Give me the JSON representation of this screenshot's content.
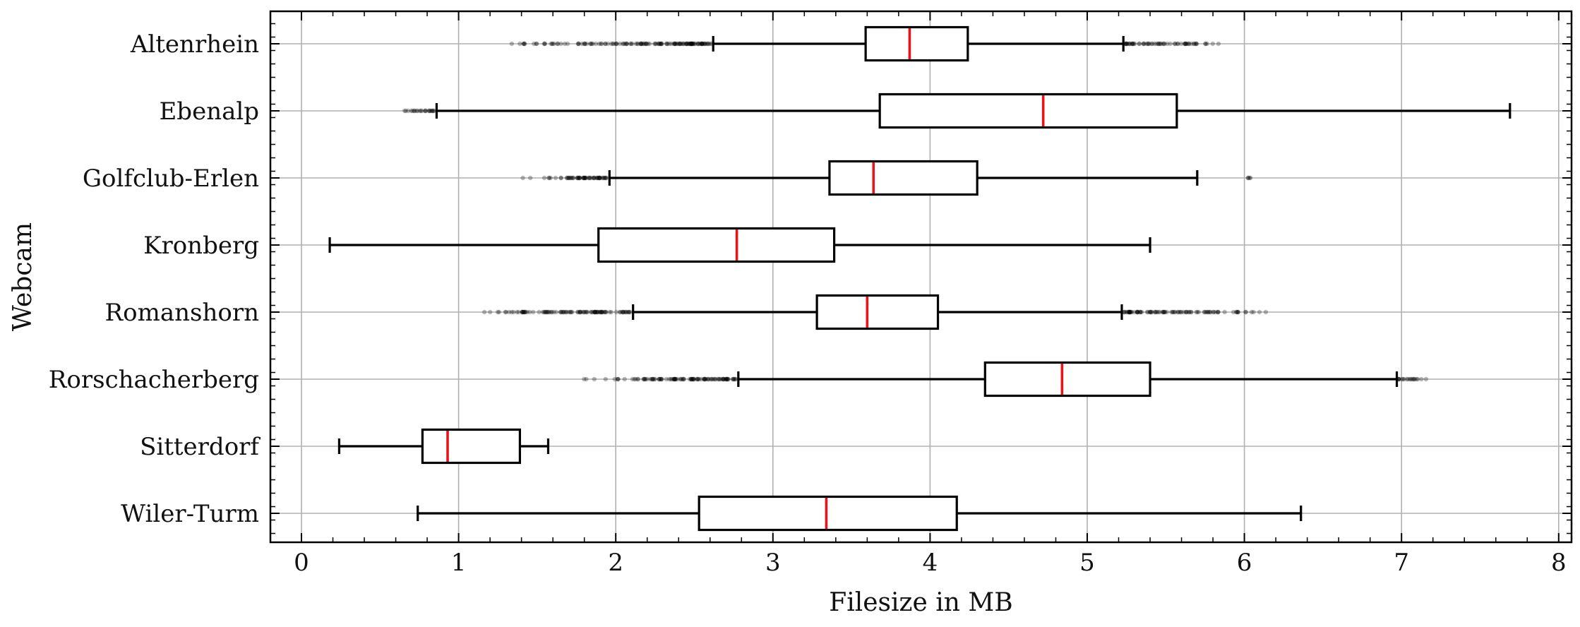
{
  "chart_data": {
    "type": "boxplot",
    "orientation": "horizontal",
    "xlabel": "Filesize in MB",
    "ylabel": "Webcam",
    "xlim": [
      -0.2,
      8.1
    ],
    "xticks": [
      "0",
      "1",
      "2",
      "3",
      "4",
      "5",
      "6",
      "7",
      "8"
    ],
    "grid": true,
    "median_color": "#e8141a",
    "box_color": "#000000",
    "categories": [
      "Altenrhein",
      "Ebenalp",
      "Golfclub-Erlen",
      "Kronberg",
      "Romanshorn",
      "Rorschacherberg",
      "Sitterdorf",
      "Wiler-Turm"
    ],
    "boxes": [
      {
        "label": "Altenrhein",
        "whisker_low": 2.62,
        "q1": 3.59,
        "median": 3.87,
        "q3": 4.24,
        "whisker_high": 5.23,
        "outliers_low": [
          1.22,
          2.61
        ],
        "outliers_high": [
          5.24,
          5.85
        ]
      },
      {
        "label": "Ebenalp",
        "whisker_low": 0.86,
        "q1": 3.68,
        "median": 4.72,
        "q3": 5.57,
        "whisker_high": 7.69,
        "outliers_low": [
          0.62,
          0.85
        ],
        "outliers_high": []
      },
      {
        "label": "Golfclub-Erlen",
        "whisker_low": 1.96,
        "q1": 3.36,
        "median": 3.64,
        "q3": 4.3,
        "whisker_high": 5.7,
        "outliers_low": [
          1.36,
          1.95
        ],
        "outliers_high": [
          6.02,
          6.06
        ]
      },
      {
        "label": "Kronberg",
        "whisker_low": 0.18,
        "q1": 1.89,
        "median": 2.77,
        "q3": 3.39,
        "whisker_high": 5.4,
        "outliers_low": [],
        "outliers_high": []
      },
      {
        "label": "Romanshorn",
        "whisker_low": 2.11,
        "q1": 3.28,
        "median": 3.6,
        "q3": 4.05,
        "whisker_high": 5.22,
        "outliers_low": [
          1.09,
          2.1
        ],
        "outliers_high": [
          5.23,
          6.15
        ]
      },
      {
        "label": "Rorschacherberg",
        "whisker_low": 2.78,
        "q1": 4.35,
        "median": 4.84,
        "q3": 5.4,
        "whisker_high": 6.97,
        "outliers_low": [
          1.71,
          2.77
        ],
        "outliers_high": [
          6.98,
          7.17
        ]
      },
      {
        "label": "Sitterdorf",
        "whisker_low": 0.24,
        "q1": 0.77,
        "median": 0.93,
        "q3": 1.39,
        "whisker_high": 1.57,
        "outliers_low": [],
        "outliers_high": []
      },
      {
        "label": "Wiler-Turm",
        "whisker_low": 0.74,
        "q1": 2.53,
        "median": 3.34,
        "q3": 4.17,
        "whisker_high": 6.36,
        "outliers_low": [],
        "outliers_high": []
      }
    ]
  }
}
